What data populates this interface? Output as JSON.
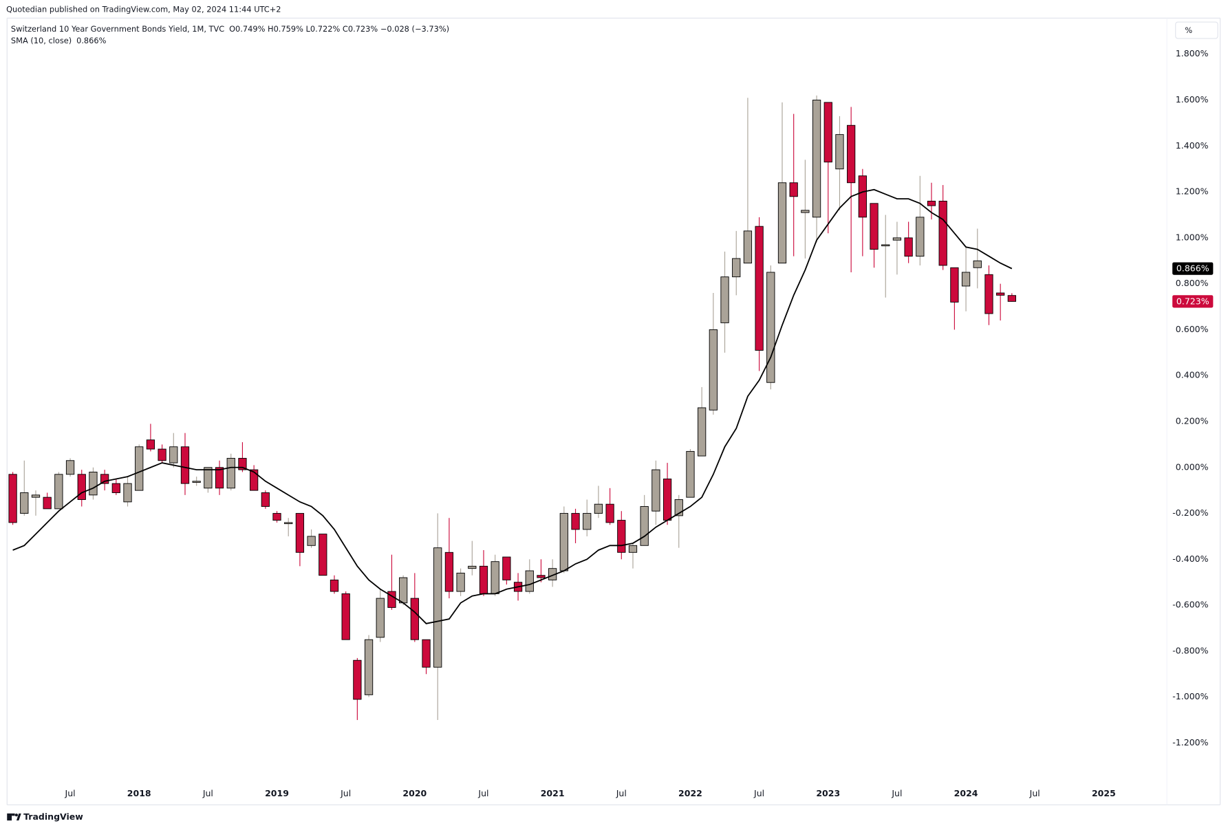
{
  "header": {
    "published": "Quotedian published on TradingView.com, May 02, 2024 11:44 UTC+2",
    "unit_button": "%",
    "logo": "TradingView"
  },
  "chart_data": {
    "type": "candlestick",
    "title": "Switzerland 10 Year Government Bonds Yield, 1M, TVC",
    "ohlc_legend": "O0.749%  H0.759%  L0.722%  C0.723%  −0.028 (−3.73%)",
    "x": [
      "2017-02",
      "2017-03",
      "2017-04",
      "2017-05",
      "2017-06",
      "2017-07",
      "2017-08",
      "2017-09",
      "2017-10",
      "2017-11",
      "2017-12",
      "2018-01",
      "2018-02",
      "2018-03",
      "2018-04",
      "2018-05",
      "2018-06",
      "2018-07",
      "2018-08",
      "2018-09",
      "2018-10",
      "2018-11",
      "2018-12",
      "2019-01",
      "2019-02",
      "2019-03",
      "2019-04",
      "2019-05",
      "2019-06",
      "2019-07",
      "2019-08",
      "2019-09",
      "2019-10",
      "2019-11",
      "2019-12",
      "2020-01",
      "2020-02",
      "2020-03",
      "2020-04",
      "2020-05",
      "2020-06",
      "2020-07",
      "2020-08",
      "2020-09",
      "2020-10",
      "2020-11",
      "2020-12",
      "2021-01",
      "2021-02",
      "2021-03",
      "2021-04",
      "2021-05",
      "2021-06",
      "2021-07",
      "2021-08",
      "2021-09",
      "2021-10",
      "2021-11",
      "2021-12",
      "2022-01",
      "2022-02",
      "2022-03",
      "2022-04",
      "2022-05",
      "2022-06",
      "2022-07",
      "2022-08",
      "2022-09",
      "2022-10",
      "2022-11",
      "2022-12",
      "2023-01",
      "2023-02",
      "2023-03",
      "2023-04",
      "2023-05",
      "2023-06",
      "2023-07",
      "2023-08",
      "2023-09",
      "2023-10",
      "2023-11",
      "2023-12",
      "2024-01",
      "2024-02",
      "2024-03",
      "2024-04",
      "2024-05"
    ],
    "open": [
      -0.03,
      -0.2,
      -0.13,
      -0.13,
      -0.18,
      -0.03,
      -0.03,
      -0.12,
      -0.03,
      -0.07,
      -0.15,
      -0.1,
      0.12,
      0.08,
      0.02,
      0.09,
      -0.06,
      -0.09,
      0.0,
      -0.09,
      0.04,
      -0.01,
      -0.11,
      -0.2,
      -0.24,
      -0.2,
      -0.34,
      -0.29,
      -0.49,
      -0.55,
      -0.84,
      -0.99,
      -0.74,
      -0.54,
      -0.59,
      -0.57,
      -0.75,
      -0.87,
      -0.37,
      -0.54,
      -0.44,
      -0.43,
      -0.55,
      -0.39,
      -0.5,
      -0.54,
      -0.47,
      -0.49,
      -0.45,
      -0.2,
      -0.27,
      -0.2,
      -0.16,
      -0.23,
      -0.37,
      -0.34,
      -0.19,
      -0.05,
      -0.21,
      -0.13,
      0.05,
      0.25,
      0.63,
      0.83,
      0.89,
      1.05,
      0.37,
      0.89,
      1.24,
      1.11,
      1.09,
      1.59,
      1.3,
      1.49,
      1.27,
      1.15,
      0.97,
      0.99,
      1.0,
      0.92,
      1.16,
      1.16,
      0.87,
      0.79,
      0.87,
      0.84,
      0.76,
      0.749
    ],
    "high": [
      -0.02,
      0.03,
      -0.1,
      -0.11,
      -0.02,
      0.04,
      -0.01,
      0.0,
      -0.01,
      -0.05,
      -0.04,
      0.1,
      0.19,
      0.1,
      0.15,
      0.15,
      -0.04,
      0.0,
      0.03,
      0.06,
      0.11,
      0.01,
      -0.1,
      -0.19,
      -0.22,
      -0.2,
      -0.27,
      -0.29,
      -0.47,
      -0.54,
      -0.83,
      -0.73,
      -0.53,
      -0.38,
      -0.47,
      -0.46,
      -0.75,
      -0.2,
      -0.22,
      -0.44,
      -0.32,
      -0.36,
      -0.38,
      -0.39,
      -0.46,
      -0.4,
      -0.4,
      -0.4,
      -0.17,
      -0.18,
      -0.14,
      -0.08,
      -0.09,
      -0.19,
      -0.33,
      -0.12,
      0.03,
      0.02,
      -0.12,
      0.08,
      0.35,
      0.76,
      0.94,
      1.03,
      1.61,
      1.09,
      0.88,
      1.59,
      1.54,
      1.34,
      1.62,
      1.59,
      1.53,
      1.57,
      1.3,
      1.15,
      1.1,
      1.07,
      1.07,
      1.27,
      1.24,
      1.23,
      0.87,
      0.96,
      1.04,
      0.88,
      0.8,
      0.759
    ],
    "low": [
      -0.25,
      -0.21,
      -0.21,
      -0.18,
      -0.18,
      -0.04,
      -0.17,
      -0.14,
      -0.1,
      -0.12,
      -0.17,
      -0.1,
      0.07,
      0.02,
      0.0,
      -0.12,
      -0.08,
      -0.11,
      -0.12,
      -0.1,
      -0.02,
      -0.1,
      -0.18,
      -0.24,
      -0.3,
      -0.43,
      -0.35,
      -0.47,
      -0.55,
      -0.75,
      -1.1,
      -1.0,
      -0.76,
      -0.62,
      -0.6,
      -0.76,
      -0.9,
      -1.1,
      -0.57,
      -0.56,
      -0.47,
      -0.56,
      -0.56,
      -0.51,
      -0.58,
      -0.55,
      -0.5,
      -0.52,
      -0.46,
      -0.33,
      -0.3,
      -0.22,
      -0.25,
      -0.4,
      -0.44,
      -0.34,
      -0.25,
      -0.25,
      -0.35,
      -0.13,
      0.05,
      0.23,
      0.5,
      0.75,
      0.89,
      0.42,
      0.34,
      0.89,
      0.92,
      0.91,
      0.98,
      1.02,
      1.12,
      0.85,
      0.92,
      0.87,
      0.74,
      0.84,
      0.89,
      0.88,
      1.08,
      0.86,
      0.6,
      0.68,
      0.78,
      0.62,
      0.64,
      0.722
    ],
    "close": [
      -0.24,
      -0.11,
      -0.12,
      -0.18,
      -0.03,
      0.03,
      -0.14,
      -0.02,
      -0.07,
      -0.11,
      -0.07,
      0.09,
      0.08,
      0.03,
      0.09,
      -0.07,
      -0.06,
      0.0,
      -0.09,
      0.04,
      -0.01,
      -0.1,
      -0.17,
      -0.23,
      -0.24,
      -0.37,
      -0.3,
      -0.47,
      -0.54,
      -0.75,
      -1.01,
      -0.75,
      -0.57,
      -0.61,
      -0.48,
      -0.75,
      -0.87,
      -0.35,
      -0.54,
      -0.46,
      -0.43,
      -0.55,
      -0.41,
      -0.49,
      -0.54,
      -0.45,
      -0.48,
      -0.44,
      -0.2,
      -0.27,
      -0.2,
      -0.16,
      -0.24,
      -0.37,
      -0.34,
      -0.17,
      -0.01,
      -0.23,
      -0.14,
      0.07,
      0.26,
      0.6,
      0.83,
      0.91,
      1.03,
      0.51,
      0.85,
      1.24,
      1.18,
      1.12,
      1.6,
      1.33,
      1.45,
      1.24,
      1.09,
      0.95,
      0.97,
      1.0,
      0.92,
      1.09,
      1.14,
      0.88,
      0.72,
      0.85,
      0.9,
      0.67,
      0.75,
      0.723
    ],
    "up_color": "#aaa398",
    "down_color": "#cc0a3c",
    "sma": {
      "name": "SMA (10, close)",
      "legend_value": "0.866%",
      "color": "#000000",
      "values": [
        -0.36,
        -0.34,
        -0.29,
        -0.24,
        -0.19,
        -0.15,
        -0.11,
        -0.09,
        -0.06,
        -0.05,
        -0.04,
        -0.02,
        0.0,
        0.02,
        0.01,
        0.0,
        -0.01,
        -0.01,
        -0.01,
        0.0,
        0.0,
        -0.02,
        -0.06,
        -0.09,
        -0.12,
        -0.15,
        -0.17,
        -0.21,
        -0.27,
        -0.35,
        -0.43,
        -0.49,
        -0.53,
        -0.56,
        -0.59,
        -0.63,
        -0.68,
        -0.67,
        -0.66,
        -0.59,
        -0.56,
        -0.55,
        -0.55,
        -0.53,
        -0.52,
        -0.51,
        -0.49,
        -0.47,
        -0.45,
        -0.42,
        -0.4,
        -0.36,
        -0.34,
        -0.34,
        -0.33,
        -0.3,
        -0.26,
        -0.23,
        -0.2,
        -0.17,
        -0.13,
        -0.03,
        0.09,
        0.17,
        0.31,
        0.38,
        0.48,
        0.62,
        0.75,
        0.86,
        0.99,
        1.06,
        1.13,
        1.18,
        1.2,
        1.21,
        1.19,
        1.17,
        1.17,
        1.15,
        1.11,
        1.08,
        1.02,
        0.96,
        0.95,
        0.92,
        0.89,
        0.866
      ]
    },
    "price_tags": [
      {
        "value": 0.866,
        "label": "0.866%",
        "color": "#000000"
      },
      {
        "value": 0.723,
        "label": "0.723%",
        "color": "#cc0a3c"
      }
    ],
    "xlim": [
      "2017-02",
      "2025-06"
    ],
    "xticks": [
      {
        "value": "2017-07",
        "label": "Jul"
      },
      {
        "value": "2018-01",
        "label": "2018"
      },
      {
        "value": "2018-07",
        "label": "Jul"
      },
      {
        "value": "2019-01",
        "label": "2019"
      },
      {
        "value": "2019-07",
        "label": "Jul"
      },
      {
        "value": "2020-01",
        "label": "2020"
      },
      {
        "value": "2020-07",
        "label": "Jul"
      },
      {
        "value": "2021-01",
        "label": "2021"
      },
      {
        "value": "2021-07",
        "label": "Jul"
      },
      {
        "value": "2022-01",
        "label": "2022"
      },
      {
        "value": "2022-07",
        "label": "Jul"
      },
      {
        "value": "2023-01",
        "label": "2023"
      },
      {
        "value": "2023-07",
        "label": "Jul"
      },
      {
        "value": "2024-01",
        "label": "2024"
      },
      {
        "value": "2024-07",
        "label": "Jul"
      },
      {
        "value": "2025-01",
        "label": "2025"
      }
    ],
    "ylim": [
      -1.374,
      1.957
    ],
    "yticks": [
      {
        "value": 1.8,
        "label": "1.800%"
      },
      {
        "value": 1.6,
        "label": "1.600%"
      },
      {
        "value": 1.4,
        "label": "1.400%"
      },
      {
        "value": 1.2,
        "label": "1.200%"
      },
      {
        "value": 1.0,
        "label": "1.000%"
      },
      {
        "value": 0.8,
        "label": "0.800%"
      },
      {
        "value": 0.6,
        "label": "0.600%"
      },
      {
        "value": 0.4,
        "label": "0.400%"
      },
      {
        "value": 0.2,
        "label": "0.200%"
      },
      {
        "value": 0,
        "label": "0.000%"
      },
      {
        "value": -0.2,
        "label": "-0.200%"
      },
      {
        "value": -0.4,
        "label": "-0.400%"
      },
      {
        "value": -0.6,
        "label": "-0.600%"
      },
      {
        "value": -0.8,
        "label": "-0.800%"
      },
      {
        "value": -1.0,
        "label": "-1.000%"
      },
      {
        "value": -1.2,
        "label": "-1.200%"
      }
    ],
    "grid": false
  }
}
